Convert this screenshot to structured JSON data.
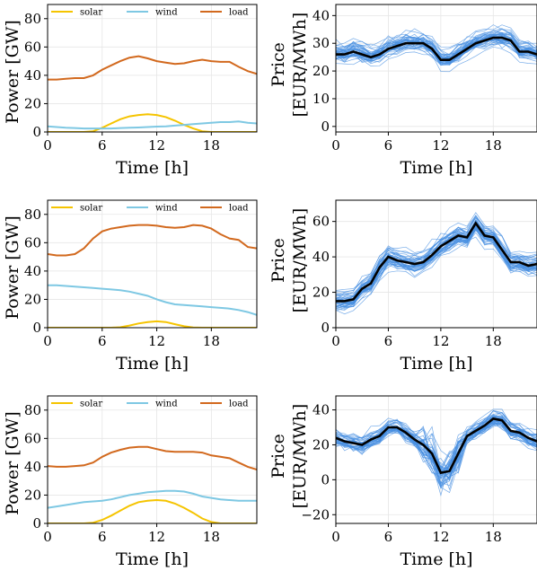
{
  "chart_data": [
    {
      "type": "line",
      "panel": "power-1",
      "xlabel": "Time [h]",
      "ylabel": "Power [GW]",
      "xlim": [
        0,
        23
      ],
      "ylim": [
        0,
        90
      ],
      "xticks": [
        0,
        6,
        12,
        18
      ],
      "yticks": [
        0,
        20,
        40,
        60,
        80
      ],
      "grid": true,
      "legend": "top",
      "x": [
        0,
        1,
        2,
        3,
        4,
        5,
        6,
        7,
        8,
        9,
        10,
        11,
        12,
        13,
        14,
        15,
        16,
        17,
        18,
        19,
        20,
        21,
        22,
        23
      ],
      "series": [
        {
          "name": "solar",
          "color": "#f5c400",
          "values": [
            0,
            0,
            0,
            0,
            0,
            0.5,
            3,
            6,
            9,
            11,
            12,
            12.5,
            12,
            10.5,
            8,
            5,
            2.5,
            0.5,
            0,
            0,
            0,
            0,
            0,
            0
          ]
        },
        {
          "name": "wind",
          "color": "#7ec8e3",
          "values": [
            4,
            3.5,
            3,
            2.8,
            2.5,
            2.5,
            2.5,
            2.5,
            2.8,
            3,
            3.2,
            3.5,
            3.8,
            4,
            4.5,
            5,
            5.5,
            6,
            6.5,
            7,
            7,
            7.5,
            6.5,
            6
          ]
        },
        {
          "name": "load",
          "color": "#d2691e",
          "values": [
            37,
            37,
            37.5,
            38,
            38,
            40,
            44,
            47,
            50,
            52.5,
            53.5,
            52,
            50,
            49,
            48,
            48.5,
            50,
            51,
            50,
            49.5,
            49.5,
            46,
            43,
            41
          ]
        }
      ]
    },
    {
      "type": "line",
      "panel": "price-1",
      "xlabel": "Time [h]",
      "ylabel": "Price [EUR/MWh]",
      "xlim": [
        0,
        23
      ],
      "ylim": [
        -2,
        44
      ],
      "xticks": [
        0,
        6,
        12,
        18
      ],
      "yticks": [
        0,
        10,
        20,
        30,
        40
      ],
      "grid": true,
      "x": [
        0,
        1,
        2,
        3,
        4,
        5,
        6,
        7,
        8,
        9,
        10,
        11,
        12,
        13,
        14,
        15,
        16,
        17,
        18,
        19,
        20,
        21,
        22,
        23
      ],
      "mean": [
        26,
        26,
        27,
        26,
        25,
        26,
        28,
        29,
        30,
        30,
        30,
        28,
        24,
        24,
        26,
        28,
        30,
        31,
        32,
        32,
        31,
        27,
        27,
        26
      ],
      "scenario_color": "#4a90e2",
      "mean_color": "#000000"
    },
    {
      "type": "line",
      "panel": "power-2",
      "xlabel": "Time [h]",
      "ylabel": "Power [GW]",
      "xlim": [
        0,
        23
      ],
      "ylim": [
        0,
        90
      ],
      "xticks": [
        0,
        6,
        12,
        18
      ],
      "yticks": [
        0,
        20,
        40,
        60,
        80
      ],
      "grid": true,
      "legend": "top",
      "x": [
        0,
        1,
        2,
        3,
        4,
        5,
        6,
        7,
        8,
        9,
        10,
        11,
        12,
        13,
        14,
        15,
        16,
        17,
        18,
        19,
        20,
        21,
        22,
        23
      ],
      "series": [
        {
          "name": "solar",
          "color": "#f5c400",
          "values": [
            0,
            0,
            0,
            0,
            0,
            0,
            0,
            0,
            0.3,
            1.5,
            3,
            4,
            4.5,
            4,
            2.5,
            1,
            0.2,
            0,
            0,
            0,
            0,
            0,
            0,
            0
          ]
        },
        {
          "name": "wind",
          "color": "#7ec8e3",
          "values": [
            30,
            30,
            29.5,
            29,
            28.5,
            28,
            27.5,
            27,
            26.5,
            25.5,
            24,
            22.5,
            20,
            18,
            16.5,
            16,
            15.5,
            15,
            14.5,
            14,
            13.5,
            12.5,
            11,
            9
          ]
        },
        {
          "name": "load",
          "color": "#d2691e",
          "values": [
            52,
            51,
            51,
            52,
            56,
            63,
            68,
            70,
            71,
            72,
            72.5,
            72.5,
            72,
            71,
            70.5,
            71,
            72.5,
            72,
            70,
            66,
            63,
            62,
            57,
            56
          ]
        }
      ]
    },
    {
      "type": "line",
      "panel": "price-2",
      "xlabel": "Time [h]",
      "ylabel": "Price [EUR/MWh]",
      "xlim": [
        0,
        23
      ],
      "ylim": [
        0,
        72
      ],
      "xticks": [
        0,
        6,
        12,
        18
      ],
      "yticks": [
        0,
        20,
        40,
        60
      ],
      "grid": true,
      "x": [
        0,
        1,
        2,
        3,
        4,
        5,
        6,
        7,
        8,
        9,
        10,
        11,
        12,
        13,
        14,
        15,
        16,
        17,
        18,
        19,
        20,
        21,
        22,
        23
      ],
      "mean": [
        15,
        15,
        16,
        22,
        25,
        34,
        40,
        38,
        37,
        36,
        37,
        41,
        46,
        49,
        52,
        51,
        59,
        52,
        51,
        44,
        37,
        37,
        35,
        36
      ],
      "scenario_color": "#4a90e2",
      "mean_color": "#000000"
    },
    {
      "type": "line",
      "panel": "power-3",
      "xlabel": "Time [h]",
      "ylabel": "Power [GW]",
      "xlim": [
        0,
        23
      ],
      "ylim": [
        0,
        90
      ],
      "xticks": [
        0,
        6,
        12,
        18
      ],
      "yticks": [
        0,
        20,
        40,
        60,
        80
      ],
      "grid": true,
      "legend": "top",
      "x": [
        0,
        1,
        2,
        3,
        4,
        5,
        6,
        7,
        8,
        9,
        10,
        11,
        12,
        13,
        14,
        15,
        16,
        17,
        18,
        19,
        20,
        21,
        22,
        23
      ],
      "series": [
        {
          "name": "solar",
          "color": "#f5c400",
          "values": [
            0,
            0,
            0,
            0,
            0,
            0.5,
            2.5,
            5.5,
            9,
            12.5,
            15,
            16,
            16.5,
            16,
            14,
            11,
            7.5,
            3.5,
            1,
            0,
            0,
            0,
            0,
            0
          ]
        },
        {
          "name": "wind",
          "color": "#7ec8e3",
          "values": [
            11,
            12,
            13,
            14,
            15,
            15.5,
            16,
            17,
            18.5,
            20,
            21,
            22,
            22.5,
            23,
            23,
            22.5,
            21,
            19,
            18,
            17,
            16.5,
            16,
            16,
            16
          ]
        },
        {
          "name": "load",
          "color": "#d2691e",
          "values": [
            40.5,
            40,
            40,
            40.5,
            41,
            43,
            47,
            50,
            52,
            53.5,
            54,
            54,
            52.5,
            51,
            50.5,
            50.5,
            50.5,
            50,
            48,
            47,
            46,
            43,
            40,
            38
          ]
        }
      ]
    },
    {
      "type": "line",
      "panel": "price-3",
      "xlabel": "Time [h]",
      "ylabel": "Price [EUR/MWh]",
      "xlim": [
        0,
        23
      ],
      "ylim": [
        -25,
        48
      ],
      "xticks": [
        0,
        6,
        12,
        18
      ],
      "yticks": [
        -20,
        0,
        20,
        40
      ],
      "grid": true,
      "x": [
        0,
        1,
        2,
        3,
        4,
        5,
        6,
        7,
        8,
        9,
        10,
        11,
        12,
        13,
        14,
        15,
        16,
        17,
        18,
        19,
        20,
        21,
        22,
        23
      ],
      "mean": [
        24,
        22,
        21,
        20,
        23,
        25,
        30,
        30,
        27,
        23,
        20,
        15,
        4,
        5,
        15,
        25,
        28,
        31,
        35,
        34,
        28,
        27,
        24,
        22
      ],
      "scenario_color": "#4a90e2",
      "mean_color": "#000000"
    }
  ]
}
